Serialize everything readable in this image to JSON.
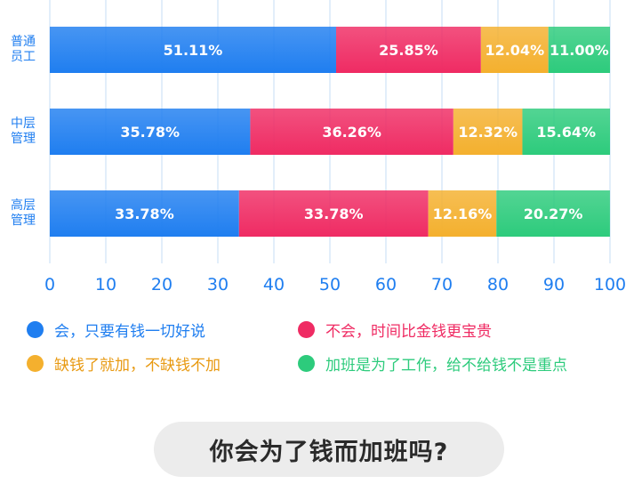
{
  "chart_data": {
    "type": "bar",
    "orientation": "horizontal",
    "stacked": true,
    "title": "你会为了钱而加班吗?",
    "categories": [
      [
        "普通",
        "员工"
      ],
      [
        "中层",
        "管理"
      ],
      [
        "高层",
        "管理"
      ]
    ],
    "xlim": [
      0,
      100
    ],
    "xticks": [
      "0",
      "10",
      "20",
      "30",
      "40",
      "50",
      "60",
      "70",
      "80",
      "90",
      "100"
    ],
    "grid": true,
    "legend_position": "bottom",
    "series": [
      {
        "name": "会，只要有钱一切好说",
        "color": "#1f7ef0",
        "values": [
          51.11,
          35.78,
          33.78
        ],
        "labels": [
          "51.11%",
          "35.78%",
          "33.78%"
        ]
      },
      {
        "name": "不会，时间比金钱更宝贵",
        "color": "#ef2b63",
        "values": [
          25.85,
          36.26,
          33.78
        ],
        "labels": [
          "25.85%",
          "36.26%",
          "33.78%"
        ]
      },
      {
        "name": "缺钱了就加，不缺钱不加",
        "color": "#f4b02e",
        "values": [
          12.04,
          12.32,
          12.16
        ],
        "labels": [
          "12.04%",
          "12.32%",
          "12.16%"
        ]
      },
      {
        "name": "加班是为了工作，给不给钱不是重点",
        "color": "#2dcb7c",
        "values": [
          11.0,
          15.64,
          20.27
        ],
        "labels": [
          "11.00%",
          "15.64%",
          "20.27%"
        ]
      }
    ]
  },
  "colors": {
    "axis_text": "#1f7ef0",
    "grid": "#cfe3f7",
    "legend_text": [
      "#1f7ef0",
      "#ef2b63",
      "#e89a12",
      "#2dcb7c"
    ]
  }
}
